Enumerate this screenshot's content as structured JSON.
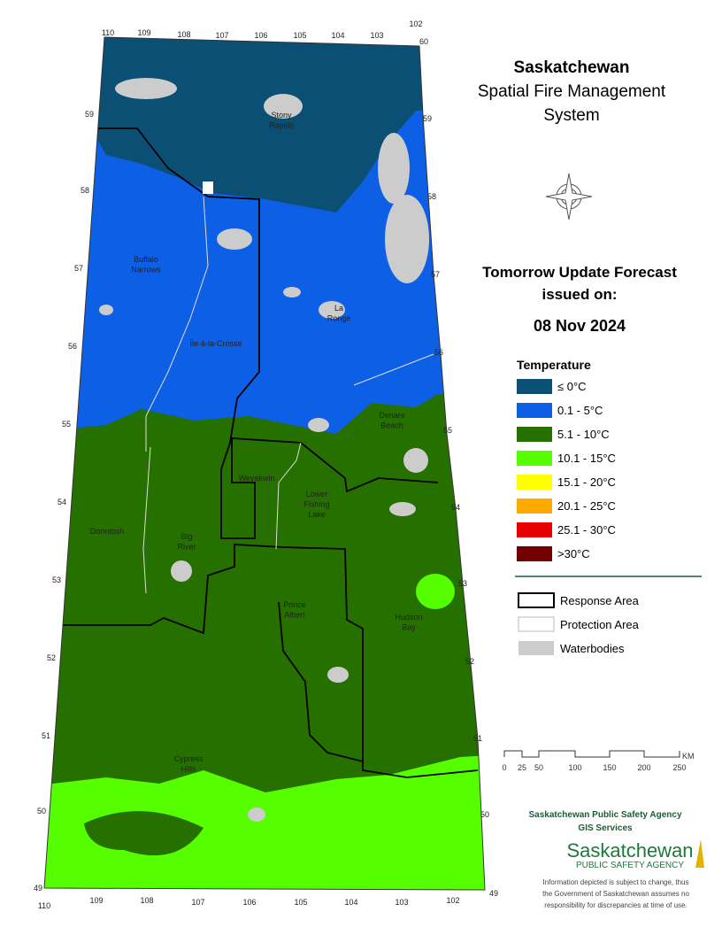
{
  "header": {
    "title": "Saskatchewan",
    "subtitle": [
      "Spatial Fire Management",
      "System"
    ]
  },
  "forecast": {
    "heading": [
      "Tomorrow Update Forecast",
      "issued on:"
    ],
    "date": "08 Nov 2024"
  },
  "legend": {
    "title": "Temperature",
    "items": [
      {
        "label": "≤ 0°C",
        "color": "#0c4f75"
      },
      {
        "label": "0.1 - 5°C",
        "color": "#0d5fe6"
      },
      {
        "label": "5.1 - 10°C",
        "color": "#267000"
      },
      {
        "label": "10.1 - 15°C",
        "color": "#55ff00"
      },
      {
        "label": "15.1 - 20°C",
        "color": "#ffff00"
      },
      {
        "label": "20.1 - 25°C",
        "color": "#ffaa00"
      },
      {
        "label": "25.1 - 30°C",
        "color": "#e60000"
      },
      {
        "label": ">30°C",
        "color": "#730000"
      }
    ],
    "boundaries": [
      "Response Area",
      "Protection Area",
      "Waterbodies"
    ]
  },
  "scale": {
    "ticks": [
      0,
      25,
      50,
      100,
      150,
      200,
      250
    ],
    "unit": "KM"
  },
  "map": {
    "lon_top": [
      110,
      109,
      108,
      107,
      106,
      105,
      104,
      103,
      102
    ],
    "lon_bottom": [
      110,
      109,
      108,
      107,
      106,
      105,
      104,
      103,
      102
    ],
    "lat_left": [
      59,
      58,
      57,
      56,
      55,
      54,
      53,
      52,
      51,
      50,
      49
    ],
    "lat_right": [
      60,
      59,
      58,
      57,
      56,
      55,
      54,
      53,
      52,
      51,
      50,
      49
    ],
    "places": [
      [
        "Stony",
        "Rapids"
      ],
      [
        "Buffalo",
        "Narrows"
      ],
      [
        "La",
        "Ronge"
      ],
      [
        "Île-à-la-Crosse"
      ],
      [
        "Denare",
        "Beach"
      ],
      [
        "Weyakwin"
      ],
      [
        "Lower",
        "Fishing",
        "Lake"
      ],
      [
        "Dorintosh"
      ],
      [
        "Big",
        "River"
      ],
      [
        "Prince",
        "Albert"
      ],
      [
        "Hudson",
        "Bay"
      ],
      [
        "Cypress",
        "Hills"
      ]
    ]
  },
  "footer": {
    "agency": "Saskatchewan Public Safety Agency",
    "unit": "GIS  Services",
    "logo_name": "Saskatchewan",
    "logo_sub": "PUBLIC SAFETY AGENCY",
    "disclaimer": [
      "Information depicted is subject to change, thus",
      "the Government of Saskatchewan assumes no",
      "responsibility for discrepancies at time of use."
    ]
  }
}
